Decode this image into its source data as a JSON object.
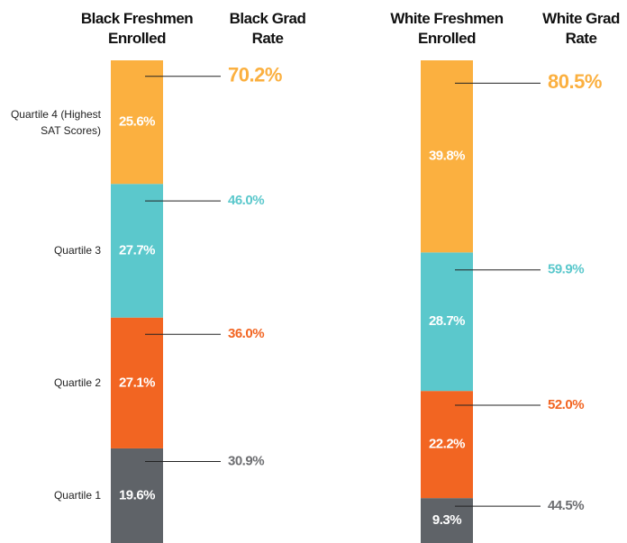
{
  "chart_data": {
    "type": "stacked-bar",
    "categories": [
      "Quartile 1",
      "Quartile 2",
      "Quartile 3",
      "Quartile 4 (Highest SAT Scores)"
    ],
    "colors": [
      "#5f6368",
      "#f26522",
      "#5bc8cc",
      "#fbb040"
    ],
    "ylim": [
      0,
      100
    ],
    "series": [
      {
        "name": "Black Freshmen Enrolled",
        "values": [
          19.6,
          27.1,
          27.7,
          25.6
        ],
        "value_labels": [
          "19.6%",
          "27.1%",
          "27.7%",
          "25.6%"
        ],
        "rate_name": "Black Grad Rate",
        "rates": [
          30.9,
          36,
          46,
          70.2
        ],
        "rate_labels": [
          "30.9%",
          "36.0%",
          "46.0%",
          "70.2%"
        ]
      },
      {
        "name": "White Freshmen Enrolled",
        "values": [
          9.3,
          22.2,
          28.7,
          39.8
        ],
        "value_labels": [
          "9.3%",
          "22.2%",
          "28.7%",
          "39.8%"
        ],
        "rate_name": "White Grad Rate",
        "rates": [
          44.5,
          52,
          59.9,
          80.5
        ],
        "rate_labels": [
          "44.5%",
          "52.0%",
          "59.9%",
          "80.5%"
        ]
      }
    ]
  }
}
